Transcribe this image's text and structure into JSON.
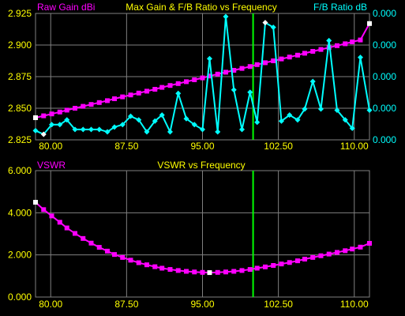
{
  "colors": {
    "background": "#000000",
    "grid": "#808080",
    "axis_text": "#ffff00",
    "gain": "#ff00ff",
    "fb": "#00ffff",
    "vswr": "#ff00ff",
    "marker_line": "#00ff00",
    "endpoint_marker": "#ffffff"
  },
  "chart_data": [
    {
      "type": "line",
      "title": "Max Gain & F/B Ratio vs Frequency",
      "ylabel_left": "Raw Gain dBi",
      "ylabel_right": "F/B Ratio dB",
      "xlim": [
        78.5,
        111.5
      ],
      "x_ticks": [
        "80.00",
        "87.50",
        "95.00",
        "102.50",
        "110.00"
      ],
      "x_tick_values": [
        80,
        87.5,
        95,
        102.5,
        110
      ],
      "ylim_left": [
        2.825,
        2.925
      ],
      "y_ticks_left": [
        "2.925",
        "2.900",
        "2.875",
        "2.850",
        "2.825"
      ],
      "y_ticks_right": [
        "0.000",
        "0.000",
        "0.000",
        "0.000",
        "0.000"
      ],
      "marker_x": 100.0,
      "grid": true,
      "series": [
        {
          "name": "Raw Gain dBi",
          "axis": "left",
          "x": [
            78.5,
            79.3,
            80.1,
            80.9,
            81.6,
            82.4,
            83.2,
            84.0,
            84.8,
            85.6,
            86.3,
            87.1,
            87.9,
            88.7,
            89.5,
            90.3,
            91.0,
            91.8,
            92.6,
            93.4,
            94.2,
            95.0,
            95.7,
            96.5,
            97.3,
            98.1,
            98.9,
            99.7,
            100.4,
            101.2,
            102.0,
            102.8,
            103.6,
            104.4,
            105.1,
            105.9,
            106.7,
            107.5,
            108.3,
            109.1,
            109.8,
            110.6,
            111.5
          ],
          "y": [
            2.8425,
            2.844,
            2.8455,
            2.847,
            2.8485,
            2.85,
            2.8515,
            2.853,
            2.8545,
            2.856,
            2.8575,
            2.859,
            2.8605,
            2.862,
            2.8635,
            2.865,
            2.8665,
            2.868,
            2.8695,
            2.871,
            2.8725,
            2.874,
            2.8755,
            2.877,
            2.8785,
            2.88,
            2.8815,
            2.883,
            2.8845,
            2.886,
            2.8875,
            2.889,
            2.8905,
            2.892,
            2.8935,
            2.895,
            2.8965,
            2.898,
            2.8995,
            2.901,
            2.9025,
            2.904,
            2.917
          ]
        },
        {
          "name": "F/B Ratio dB",
          "axis": "right",
          "x": [
            78.5,
            79.3,
            80.1,
            80.9,
            81.6,
            82.4,
            83.2,
            84.0,
            84.8,
            85.6,
            86.3,
            87.1,
            87.9,
            88.7,
            89.5,
            90.3,
            91.0,
            91.8,
            92.6,
            93.4,
            94.2,
            95.0,
            95.7,
            96.5,
            97.3,
            98.1,
            98.9,
            99.7,
            100.4,
            101.2,
            102.0,
            102.8,
            103.6,
            104.4,
            105.1,
            105.9,
            106.7,
            107.5,
            108.3,
            109.1,
            109.8,
            110.6,
            111.5
          ],
          "y": [
            0.05,
            0.02,
            0.1,
            0.1,
            0.14,
            0.06,
            0.06,
            0.06,
            0.06,
            0.04,
            0.08,
            0.1,
            0.17,
            0.14,
            0.04,
            0.13,
            0.18,
            0.04,
            0.36,
            0.15,
            0.1,
            0.06,
            0.65,
            0.04,
            1.0,
            0.39,
            0.06,
            0.37,
            0.12,
            0.95,
            0.91,
            0.13,
            0.18,
            0.14,
            0.23,
            0.46,
            0.23,
            0.8,
            0.22,
            0.14,
            0.07,
            0.66,
            0.22
          ]
        }
      ]
    },
    {
      "type": "line",
      "title": "VSWR vs Frequency",
      "ylabel": "VSWR",
      "xlim": [
        78.5,
        111.5
      ],
      "x_ticks": [
        "80.00",
        "87.50",
        "95.00",
        "102.50",
        "110.00"
      ],
      "x_tick_values": [
        80,
        87.5,
        95,
        102.5,
        110
      ],
      "ylim": [
        0,
        6
      ],
      "y_ticks": [
        "6.000",
        "4.000",
        "2.000",
        "0.000"
      ],
      "y_tick_values": [
        6,
        4,
        2,
        0
      ],
      "marker_x": 100.0,
      "grid": true,
      "series": [
        {
          "name": "VSWR",
          "x": [
            78.5,
            79.3,
            80.1,
            80.9,
            81.6,
            82.4,
            83.2,
            84.0,
            84.8,
            85.6,
            86.3,
            87.1,
            87.9,
            88.7,
            89.5,
            90.3,
            91.0,
            91.8,
            92.6,
            93.4,
            94.2,
            95.0,
            95.7,
            96.5,
            97.3,
            98.1,
            98.9,
            99.7,
            100.4,
            101.2,
            102.0,
            102.8,
            103.6,
            104.4,
            105.1,
            105.9,
            106.7,
            107.5,
            108.3,
            109.1,
            109.8,
            110.6,
            111.5
          ],
          "y": [
            4.5,
            4.15,
            3.85,
            3.55,
            3.28,
            3.02,
            2.78,
            2.56,
            2.36,
            2.18,
            2.02,
            1.88,
            1.75,
            1.63,
            1.53,
            1.44,
            1.37,
            1.31,
            1.26,
            1.22,
            1.19,
            1.17,
            1.16,
            1.17,
            1.19,
            1.22,
            1.26,
            1.31,
            1.37,
            1.43,
            1.5,
            1.57,
            1.64,
            1.72,
            1.8,
            1.88,
            1.96,
            2.04,
            2.12,
            2.2,
            2.28,
            2.37,
            2.55
          ]
        }
      ]
    }
  ]
}
